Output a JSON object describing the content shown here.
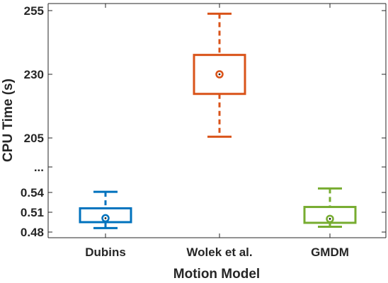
{
  "chart_data": {
    "type": "box",
    "xlabel": "Motion Model",
    "ylabel": "CPU Time (s)",
    "categories": [
      "Dubins",
      "Wolek et al.",
      "GMDM"
    ],
    "y_ticks": [
      "255",
      "230",
      "205",
      "...",
      "0.54",
      "0.51",
      "0.48"
    ],
    "y_axis_note": "broken axis: lower segment 0.48–0.54, upper segment 205–255",
    "series": [
      {
        "category": "Dubins",
        "color": "#0072BD",
        "whisker_low": 0.486,
        "q1": 0.495,
        "median": 0.501,
        "q3": 0.516,
        "whisker_high": 0.541
      },
      {
        "category": "Wolek et al.",
        "color": "#D95319",
        "whisker_low": 205.5,
        "q1": 222.3,
        "median": 230.0,
        "q3": 237.6,
        "whisker_high": 253.8
      },
      {
        "category": "GMDM",
        "color": "#77AC30",
        "whisker_low": 0.488,
        "q1": 0.494,
        "median": 0.5,
        "q3": 0.518,
        "whisker_high": 0.546
      }
    ],
    "grid": false
  }
}
